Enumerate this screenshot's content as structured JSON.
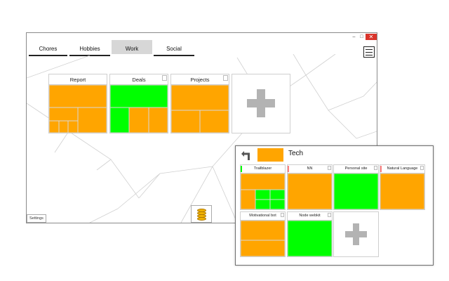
{
  "window": {
    "controls": {
      "minimize": "–",
      "maximize": "□",
      "close": "✕"
    },
    "tabs": [
      "Chores",
      "Hobbies",
      "Work",
      "Social"
    ],
    "active_tab": "Work",
    "menu_icon": "hamburger-menu-icon",
    "boards": [
      {
        "title": "Report"
      },
      {
        "title": "Deals"
      },
      {
        "title": "Projects"
      }
    ],
    "add_icon": "plus-icon",
    "settings_label": "Settings",
    "coins_icon": "coin-stack-icon"
  },
  "panel": {
    "back_icon": "back-arrow-icon",
    "title": "Tech",
    "color": "#ffa500",
    "cards": [
      {
        "title": "Trailblazer"
      },
      {
        "title": "NN"
      },
      {
        "title": "Personal site"
      },
      {
        "title": "Natural Language"
      },
      {
        "title": "Motivational bot"
      },
      {
        "title": "Node webkit"
      }
    ],
    "add_icon": "plus-icon"
  },
  "colors": {
    "orange": "#ffa500",
    "green": "#00ff00",
    "close_red": "#d9342b",
    "grey_plus": "#b3b3b3"
  }
}
